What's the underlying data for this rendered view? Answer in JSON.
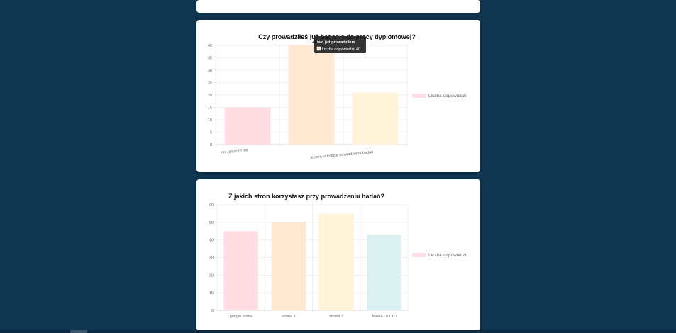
{
  "charts": [
    {
      "title": "Czy prowadziłeś już badania do pracy dyplomowej?",
      "legend_label": "Liczba odpowiedzi",
      "tooltip": {
        "title": "tak, już prowadziłem",
        "label": "Liczba odpowiedzi: 40"
      }
    },
    {
      "title": "Z jakich stron korzystasz przy prowadzeniu badań?",
      "legend_label": "Liczba odpowiedzi"
    }
  ],
  "chart_data": [
    {
      "type": "bar",
      "title": "Czy prowadziłeś już badania do pracy dyplomowej?",
      "categories": [
        "nie, jeszcze nie",
        "tak, już prowadziłem",
        "jestem w trakcie prowadzenia badań"
      ],
      "category_labels_visible": [
        "nie, jeszcze nie",
        "",
        "jestem w trakcie prowadzenia badań"
      ],
      "series": [
        {
          "name": "Liczba odpowiedzi",
          "values": [
            15,
            40,
            21
          ]
        }
      ],
      "bar_colors": [
        "#ffdde3",
        "#ffe9d3",
        "#fff3da"
      ],
      "ylim": [
        0,
        40
      ],
      "yticks": [
        0,
        5,
        10,
        15,
        20,
        25,
        30,
        35,
        40
      ],
      "grid": true,
      "legend": "right"
    },
    {
      "type": "bar",
      "title": "Z jakich stron korzystasz przy prowadzeniu badań?",
      "categories": [
        "google forms",
        "strona 1",
        "strona 2",
        "ANKIETUJ TO"
      ],
      "series": [
        {
          "name": "Liczba odpowiedzi",
          "values": [
            45,
            50,
            55,
            43
          ]
        }
      ],
      "bar_colors": [
        "#ffdde3",
        "#ffe9d3",
        "#fff3da",
        "#dbf0f0"
      ],
      "ylim": [
        0,
        60
      ],
      "yticks": [
        0,
        10,
        20,
        30,
        40,
        50,
        60
      ],
      "grid": true,
      "legend": "right"
    }
  ]
}
